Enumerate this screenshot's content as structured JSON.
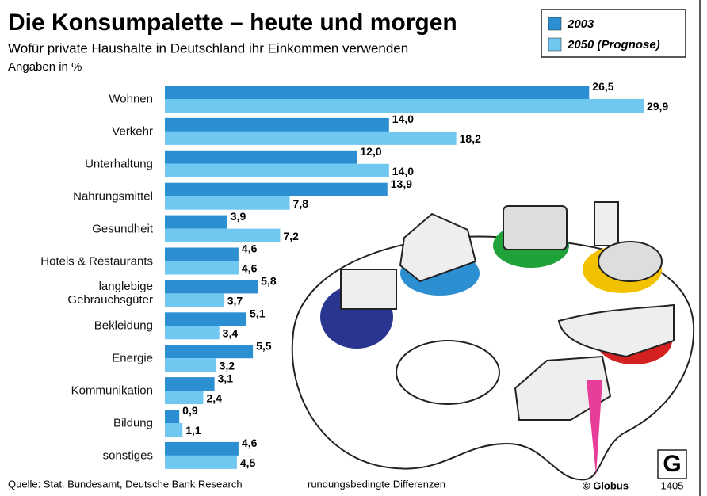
{
  "title": "Die Konsumpalette – heute und morgen",
  "subtitle": "Wofür private Haushalte in Deutschland ihr Einkommen verwenden",
  "note": "Angaben in %",
  "source": "Quelle: Stat. Bundesamt, Deutsche Bank Research",
  "footnote": "rundungsbedingte Differenzen",
  "credit": "© Globus",
  "logo": "G",
  "code": "1405",
  "chart_data": {
    "type": "bar",
    "orientation": "horizontal",
    "categories": [
      "Wohnen",
      "Verkehr",
      "Unterhaltung",
      "Nahrungsmittel",
      "Gesundheit",
      "Hotels & Restaurants",
      "langlebige\nGebrauchsgüter",
      "Bekleidung",
      "Energie",
      "Kommunikation",
      "Bildung",
      "sonstiges"
    ],
    "series": [
      {
        "name": "2003",
        "color": "#2b8fd2",
        "values": [
          26.5,
          14.0,
          12.0,
          13.9,
          3.9,
          4.6,
          5.8,
          5.1,
          5.5,
          3.1,
          0.9,
          4.6
        ],
        "value_labels": [
          "26,5",
          "14,0",
          "12,0",
          "13,9",
          "3,9",
          "4,6",
          "5,8",
          "5,1",
          "5,5",
          "3,1",
          "0,9",
          "4,6"
        ]
      },
      {
        "name": "2050 (Prognose)",
        "color": "#70c8f1",
        "values": [
          29.9,
          18.2,
          14.0,
          7.8,
          7.2,
          4.6,
          3.7,
          3.4,
          3.2,
          2.4,
          1.1,
          4.5
        ],
        "value_labels": [
          "29,9",
          "18,2",
          "14,0",
          "7,8",
          "7,2",
          "4,6",
          "3,7",
          "3,4",
          "3,2",
          "2,4",
          "1,1",
          "4,5"
        ]
      }
    ]
  }
}
